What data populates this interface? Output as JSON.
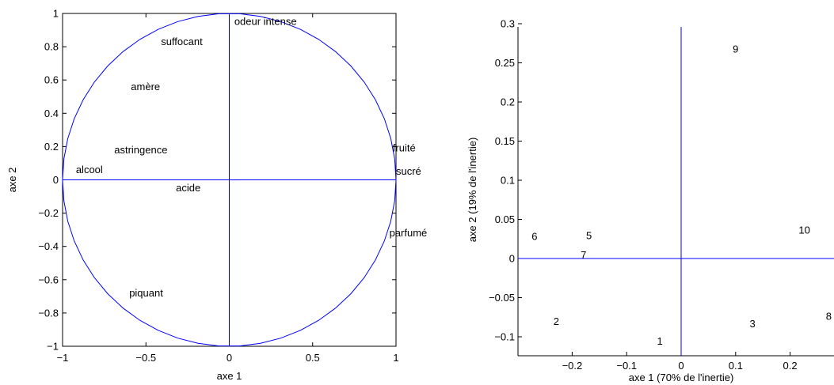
{
  "chart_data": [
    {
      "type": "scatter",
      "name": "correlation-circle",
      "xlabel": "axe 1",
      "ylabel": "axe 2",
      "xlim": [
        -1,
        1
      ],
      "ylim": [
        -1,
        1
      ],
      "xticks": [
        "−1",
        "−0.5",
        "0",
        "0.5",
        "1"
      ],
      "yticks": [
        "−1",
        "−0.8",
        "−0.6",
        "−0.4",
        "−0.2",
        "0",
        "0.2",
        "0.4",
        "0.6",
        "0.8",
        "1"
      ],
      "unit_circle": true,
      "grid": false,
      "points": [
        {
          "label": "odeur intense",
          "x": 0.03,
          "y": 0.93
        },
        {
          "label": "suffocant",
          "x": -0.41,
          "y": 0.81
        },
        {
          "label": "amère",
          "x": -0.59,
          "y": 0.54
        },
        {
          "label": "astringence",
          "x": -0.69,
          "y": 0.16
        },
        {
          "label": "alcool",
          "x": -0.92,
          "y": 0.04
        },
        {
          "label": "acide",
          "x": -0.32,
          "y": -0.07
        },
        {
          "label": "fruité",
          "x": 0.98,
          "y": 0.17
        },
        {
          "label": "sucré",
          "x": 1.0,
          "y": 0.03
        },
        {
          "label": "parfumé",
          "x": 0.96,
          "y": -0.34
        },
        {
          "label": "piquant",
          "x": -0.6,
          "y": -0.7
        }
      ]
    },
    {
      "type": "scatter",
      "name": "individuals-map",
      "xlabel": "axe 1 (70% de l'inertie)",
      "ylabel": "axe 2 (19% de l'inertie)",
      "xlim": [
        -0.28,
        0.28
      ],
      "ylim": [
        -0.135,
        0.295
      ],
      "xticks": [
        {
          "value": -0.2,
          "label": "−0.2"
        },
        {
          "value": -0.1,
          "label": "−0.1"
        },
        {
          "value": 0,
          "label": "0"
        },
        {
          "value": 0.1,
          "label": "0.1"
        },
        {
          "value": 0.2,
          "label": "0.2"
        }
      ],
      "yticks": [
        {
          "value": 0.3,
          "label": "0.3"
        },
        {
          "value": 0.25,
          "label": "0.25"
        },
        {
          "value": 0.2,
          "label": "0.2"
        },
        {
          "value": 0.15,
          "label": "0.15"
        },
        {
          "value": 0.1,
          "label": "0.1"
        },
        {
          "value": 0.05,
          "label": "0.05"
        },
        {
          "value": 0,
          "label": "0"
        },
        {
          "value": -0.05,
          "label": "−0.05"
        },
        {
          "value": -0.1,
          "label": "−0.1"
        }
      ],
      "grid": false,
      "points": [
        {
          "label": "9",
          "x": 0.099,
          "y": 0.268
        },
        {
          "label": "6",
          "x": -0.27,
          "y": 0.029
        },
        {
          "label": "5",
          "x": -0.17,
          "y": 0.03
        },
        {
          "label": "7",
          "x": -0.18,
          "y": 0.005
        },
        {
          "label": "10",
          "x": 0.22,
          "y": 0.037
        },
        {
          "label": "2",
          "x": -0.23,
          "y": -0.08
        },
        {
          "label": "3",
          "x": 0.13,
          "y": -0.083
        },
        {
          "label": "8",
          "x": 0.27,
          "y": -0.073
        },
        {
          "label": "1",
          "x": -0.04,
          "y": -0.105
        }
      ]
    }
  ],
  "style": {
    "line_color": "#0000ff",
    "axis_color": "#000000"
  }
}
